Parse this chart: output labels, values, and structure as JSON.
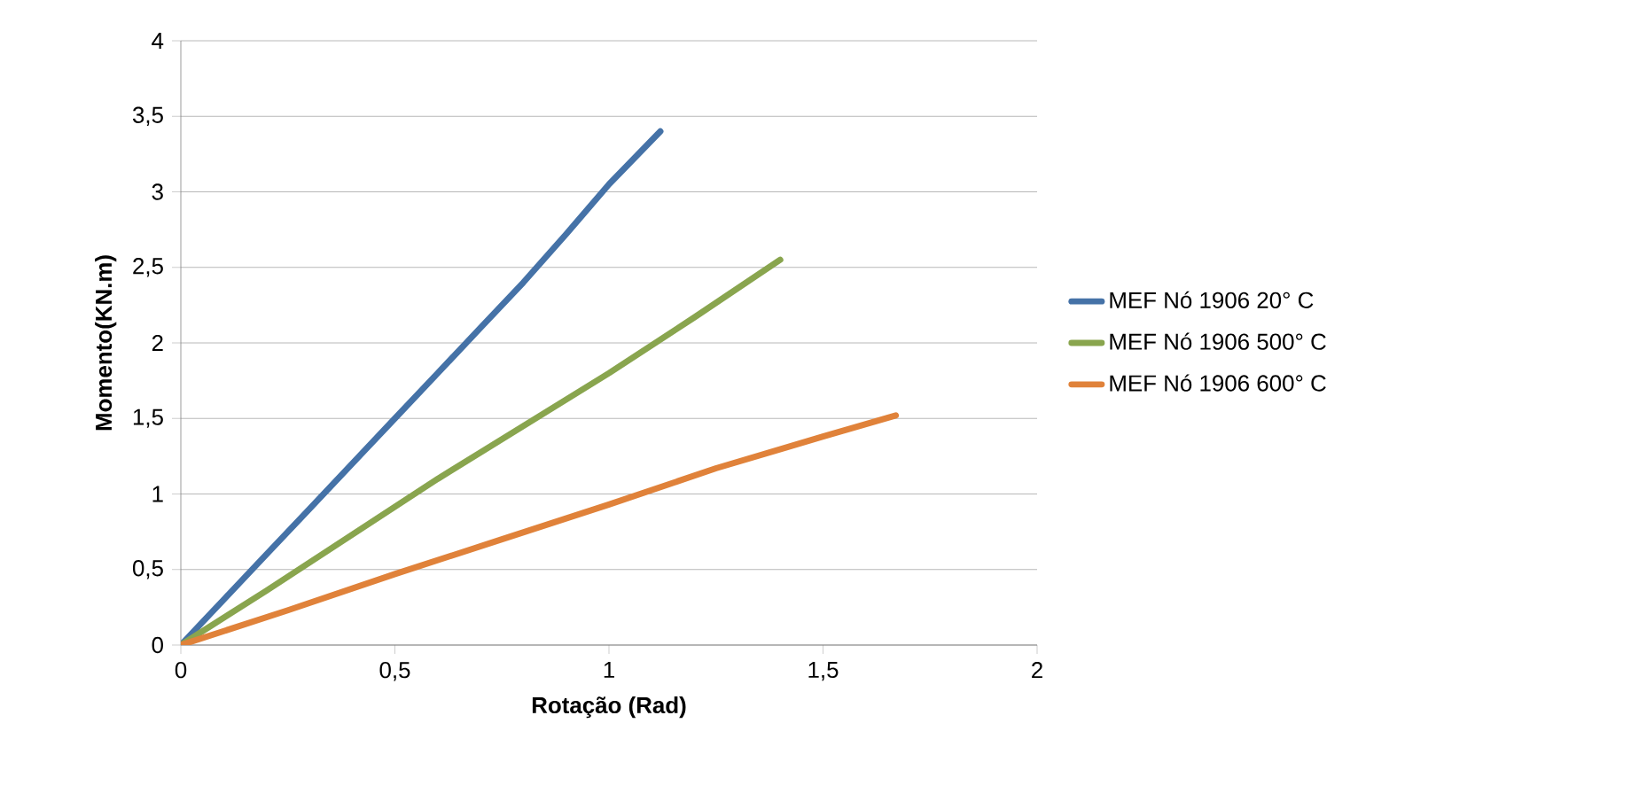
{
  "chart_data": {
    "type": "line",
    "xlabel": "Rotação (Rad)",
    "ylabel": "Momento(KN.m)",
    "series": [
      {
        "name": "MEF Nó 1906 20° C",
        "color": "#4572a7",
        "x": [
          0,
          0.05,
          0.1,
          0.2,
          0.3,
          0.4,
          0.5,
          0.6,
          0.7,
          0.8,
          0.9,
          1.0,
          1.12
        ],
        "values": [
          0,
          0.15,
          0.3,
          0.6,
          0.9,
          1.2,
          1.5,
          1.8,
          2.1,
          2.4,
          2.72,
          3.05,
          3.4
        ]
      },
      {
        "name": "MEF Nó 1906 500° C",
        "color": "#89a54e",
        "x": [
          0,
          0.2,
          0.4,
          0.6,
          0.8,
          1.0,
          1.2,
          1.4
        ],
        "values": [
          0,
          0.36,
          0.73,
          1.1,
          1.45,
          1.8,
          2.17,
          2.55
        ]
      },
      {
        "name": "MEF Nó 1906 600° C",
        "color": "#e0823a",
        "x": [
          0,
          0.25,
          0.5,
          0.75,
          1.0,
          1.25,
          1.5,
          1.67
        ],
        "values": [
          0,
          0.23,
          0.47,
          0.7,
          0.93,
          1.17,
          1.38,
          1.52
        ]
      }
    ],
    "xlim": [
      0,
      2
    ],
    "xticks": [
      0,
      {
        "value": 0.5,
        "label": "0,5"
      },
      1,
      {
        "value": 1.5,
        "label": "1,5"
      },
      2
    ],
    "ylim": [
      0,
      4
    ],
    "yticks": [
      0,
      {
        "value": 0.5,
        "label": "0,5"
      },
      1,
      {
        "value": 1.5,
        "label": "1,5"
      },
      2,
      {
        "value": 2.5,
        "label": "2,5"
      },
      3,
      {
        "value": 3.5,
        "label": "3,5"
      },
      4
    ],
    "grid": "y",
    "legend": "right",
    "marker": "none",
    "line_style": "solid"
  }
}
